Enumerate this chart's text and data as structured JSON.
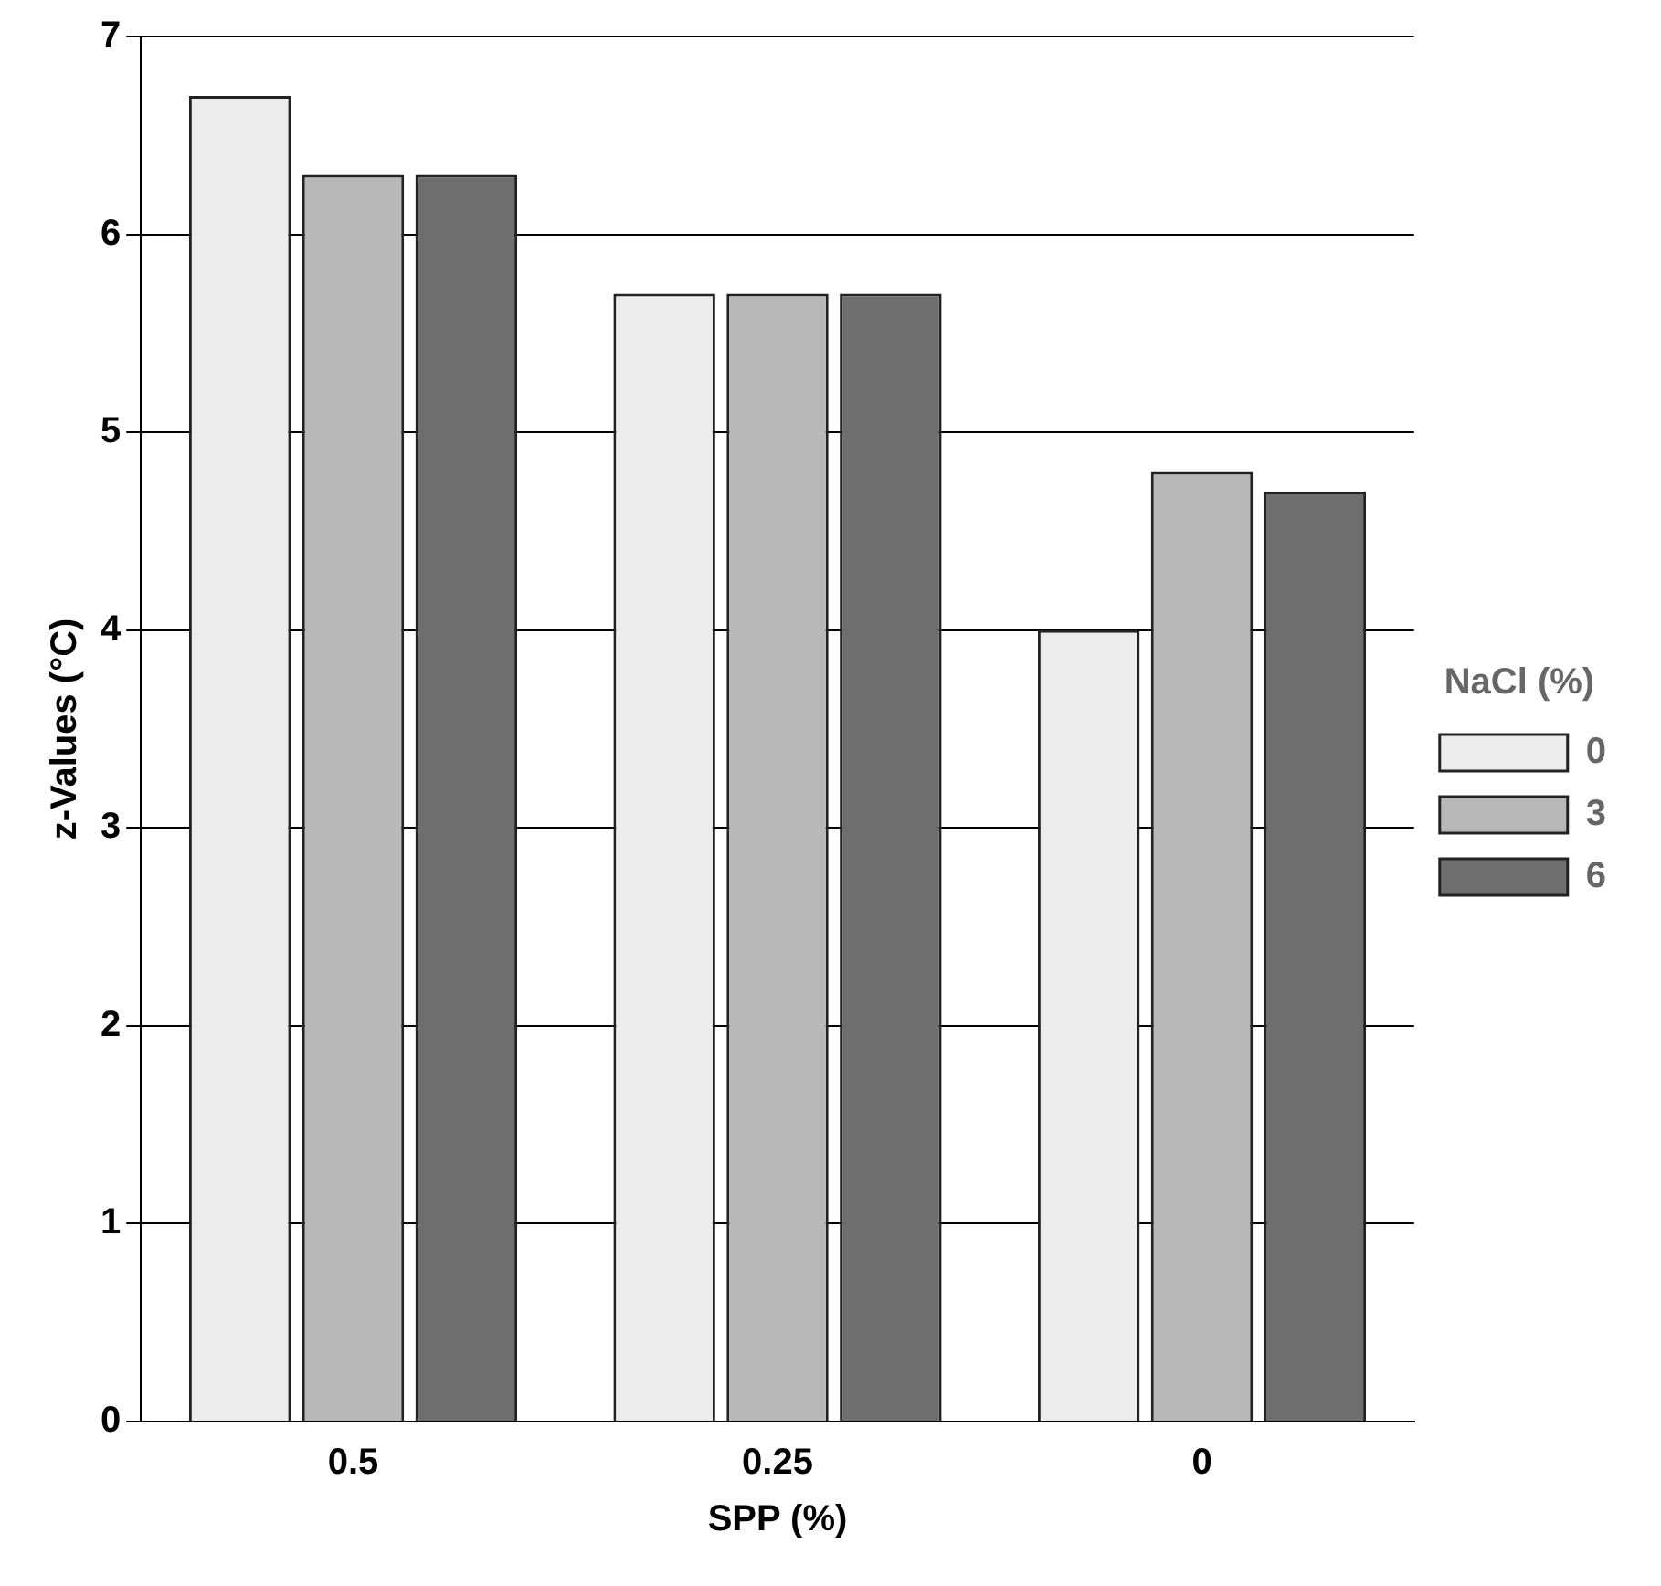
{
  "chart_data": {
    "type": "bar",
    "xlabel": "SPP (%)",
    "ylabel": "z-Values (°C)",
    "legend_title": "NaCl (%)",
    "categories": [
      "0.5",
      "0.25",
      "0"
    ],
    "series": [
      {
        "name": "0",
        "color": "#ececec",
        "values": [
          6.7,
          5.7,
          4.0
        ]
      },
      {
        "name": "3",
        "color": "#b8b8b8",
        "values": [
          6.3,
          5.7,
          4.8
        ]
      },
      {
        "name": "6",
        "color": "#6e6e6e",
        "values": [
          6.3,
          5.7,
          4.7
        ]
      }
    ],
    "ylim": [
      0,
      7
    ],
    "yticks": [
      0,
      1,
      2,
      3,
      4,
      5,
      6,
      7
    ],
    "grid": "y",
    "legend": "right"
  }
}
